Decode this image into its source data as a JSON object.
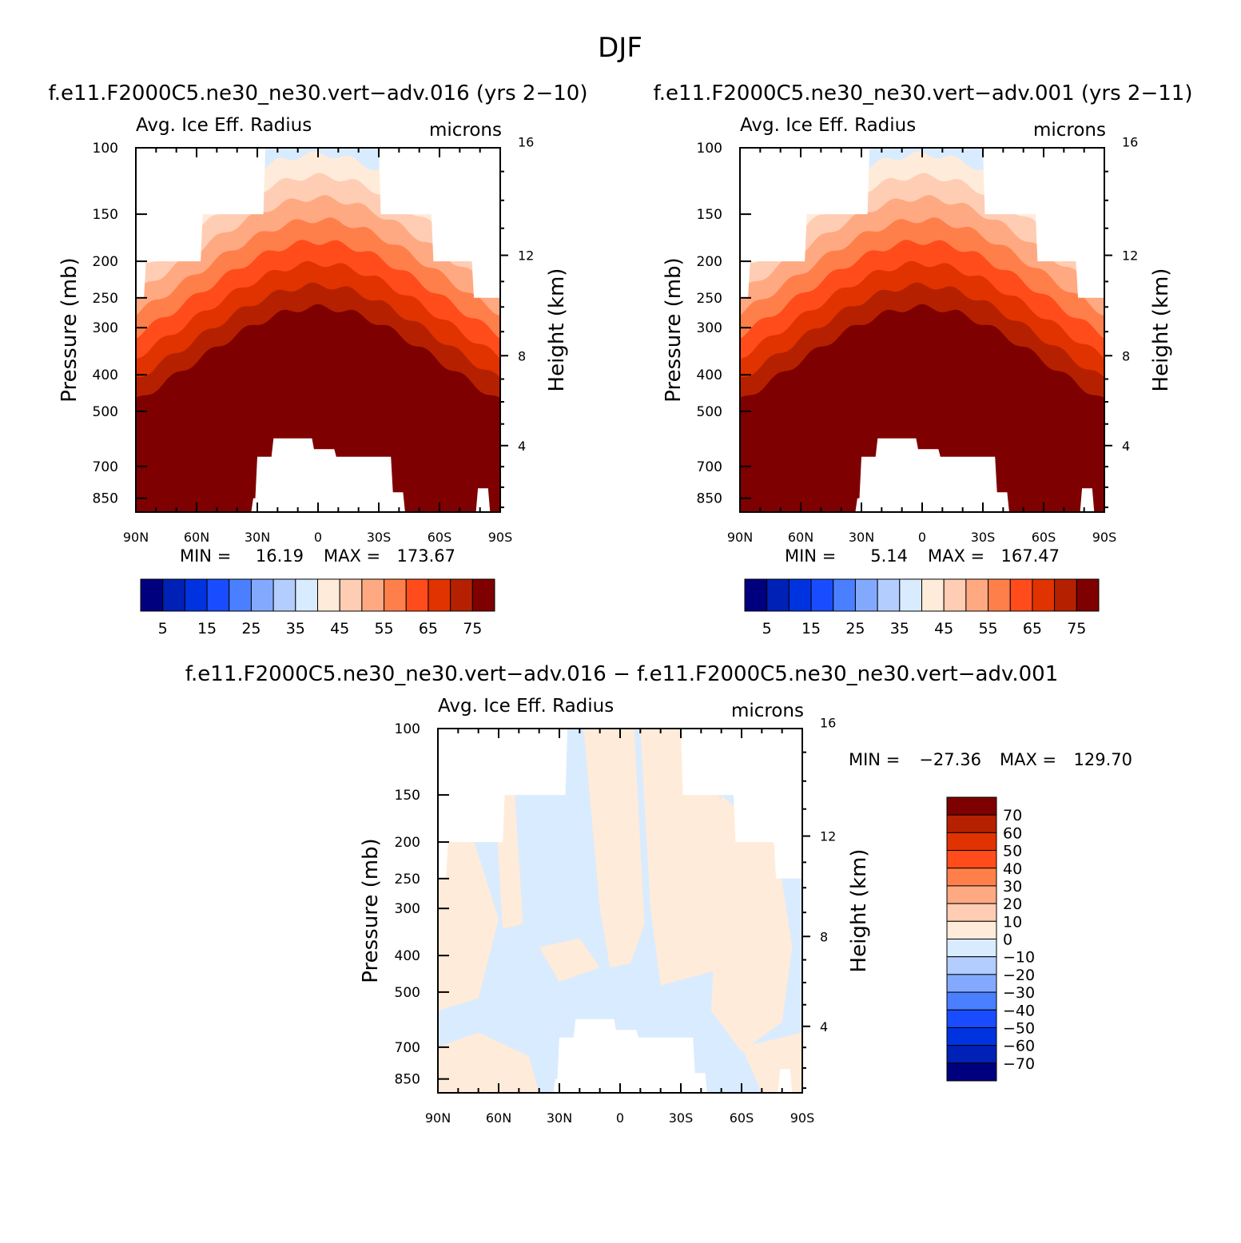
{
  "figure": {
    "title": "DJF"
  },
  "chart_data": [
    {
      "type": "heatmap",
      "title": "f.e11.F2000C5.ne30_ne30.vert−adv.016 (yrs 2−10)",
      "subtitle_left": "Avg. Ice Eff. Radius",
      "subtitle_right": "microns",
      "xlabel": "",
      "ylabel": "Pressure (mb)",
      "ylabel_right": "Height (km)",
      "x_ticks": [
        "90N",
        "60N",
        "30N",
        "0",
        "30S",
        "60S",
        "90S"
      ],
      "y_ticks": [
        "100",
        "150",
        "200",
        "250",
        "300",
        "400",
        "500",
        "700",
        "850"
      ],
      "y2_ticks": [
        "16",
        "12",
        "8",
        "4"
      ],
      "stats": {
        "min_label": "MIN =",
        "min": "16.19",
        "max_label": "MAX =",
        "max": "173.67"
      },
      "colorbar": {
        "orientation": "horizontal",
        "colors": [
          "#00007f",
          "#0021b5",
          "#0033e0",
          "#1a4cff",
          "#4a7fff",
          "#83a9ff",
          "#b3cdff",
          "#d9ebff",
          "#ffebd9",
          "#ffcdb3",
          "#ffa982",
          "#ff7f4a",
          "#ff4c1a",
          "#e03300",
          "#b52100",
          "#7f0000"
        ],
        "labels": [
          "5",
          "15",
          "25",
          "35",
          "45",
          "55",
          "65",
          "75"
        ]
      }
    },
    {
      "type": "heatmap",
      "title": "f.e11.F2000C5.ne30_ne30.vert−adv.001 (yrs 2−11)",
      "subtitle_left": "Avg. Ice Eff. Radius",
      "subtitle_right": "microns",
      "xlabel": "",
      "ylabel": "Pressure (mb)",
      "ylabel_right": "Height (km)",
      "x_ticks": [
        "90N",
        "60N",
        "30N",
        "0",
        "30S",
        "60S",
        "90S"
      ],
      "y_ticks": [
        "100",
        "150",
        "200",
        "250",
        "300",
        "400",
        "500",
        "700",
        "850"
      ],
      "y2_ticks": [
        "16",
        "12",
        "8",
        "4"
      ],
      "stats": {
        "min_label": "MIN =",
        "min": "5.14",
        "max_label": "MAX =",
        "max": "167.47"
      },
      "colorbar": {
        "orientation": "horizontal",
        "colors": [
          "#00007f",
          "#0021b5",
          "#0033e0",
          "#1a4cff",
          "#4a7fff",
          "#83a9ff",
          "#b3cdff",
          "#d9ebff",
          "#ffebd9",
          "#ffcdb3",
          "#ffa982",
          "#ff7f4a",
          "#ff4c1a",
          "#e03300",
          "#b52100",
          "#7f0000"
        ],
        "labels": [
          "5",
          "15",
          "25",
          "35",
          "45",
          "55",
          "65",
          "75"
        ]
      }
    },
    {
      "type": "heatmap",
      "title": "f.e11.F2000C5.ne30_ne30.vert−adv.016 − f.e11.F2000C5.ne30_ne30.vert−adv.001",
      "subtitle_left": "Avg. Ice Eff. Radius",
      "subtitle_right": "microns",
      "xlabel": "",
      "ylabel": "Pressure (mb)",
      "ylabel_right": "Height (km)",
      "x_ticks": [
        "90N",
        "60N",
        "30N",
        "0",
        "30S",
        "60S",
        "90S"
      ],
      "y_ticks": [
        "100",
        "150",
        "200",
        "250",
        "300",
        "400",
        "500",
        "700",
        "850"
      ],
      "y2_ticks": [
        "16",
        "12",
        "8",
        "4"
      ],
      "stats": {
        "min_label": "MIN =",
        "min": "−27.36",
        "max_label": "MAX =",
        "max": "129.70"
      },
      "colorbar": {
        "orientation": "vertical",
        "colors": [
          "#7f0000",
          "#b52100",
          "#e03300",
          "#ff4c1a",
          "#ff7f4a",
          "#ffa982",
          "#ffcdb3",
          "#ffebd9",
          "#d9ebff",
          "#b3cdff",
          "#83a9ff",
          "#4a7fff",
          "#1a4cff",
          "#0033e0",
          "#0021b5",
          "#00007f"
        ],
        "labels": [
          "70",
          "60",
          "50",
          "40",
          "30",
          "20",
          "10",
          "0",
          "−10",
          "−20",
          "−30",
          "−40",
          "−50",
          "−60",
          "−70"
        ]
      }
    }
  ]
}
